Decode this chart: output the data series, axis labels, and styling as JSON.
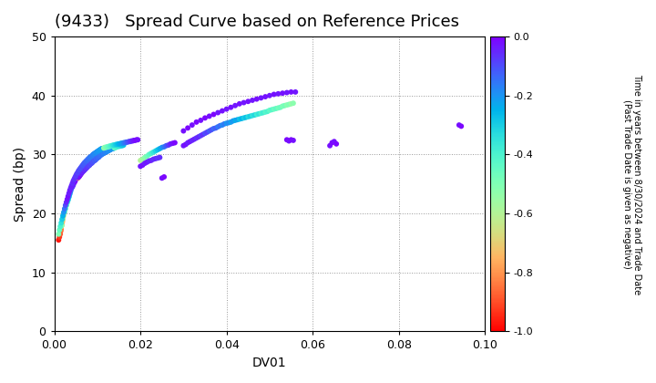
{
  "title": "(9433)   Spread Curve based on Reference Prices",
  "xlabel": "DV01",
  "ylabel": "Spread (bp)",
  "xlim": [
    0.0,
    0.1
  ],
  "ylim": [
    0,
    50
  ],
  "xticks": [
    0.0,
    0.02,
    0.04,
    0.06,
    0.08,
    0.1
  ],
  "yticks": [
    0,
    10,
    20,
    30,
    40,
    50
  ],
  "colorbar_label_line1": "Time in years between 8/30/2024 and Trade Date",
  "colorbar_label_line2": "(Past Trade Date is given as negative)",
  "cbar_min": -1.0,
  "cbar_max": 0.0,
  "cbar_ticks": [
    0.0,
    -0.2,
    -0.4,
    -0.6,
    -0.8,
    -1.0
  ],
  "points": [
    [
      0.001,
      15.5,
      -0.97
    ],
    [
      0.0012,
      16.0,
      -0.93
    ],
    [
      0.0014,
      16.5,
      -0.89
    ],
    [
      0.0015,
      17.0,
      -0.87
    ],
    [
      0.0016,
      17.3,
      -0.84
    ],
    [
      0.0016,
      17.8,
      -0.6
    ],
    [
      0.0017,
      18.0,
      -0.8
    ],
    [
      0.0018,
      18.3,
      -0.77
    ],
    [
      0.0018,
      18.0,
      -0.55
    ],
    [
      0.0019,
      18.6,
      -0.73
    ],
    [
      0.002,
      19.0,
      -0.7
    ],
    [
      0.002,
      19.2,
      -0.52
    ],
    [
      0.0021,
      19.5,
      -0.67
    ],
    [
      0.0022,
      19.8,
      -0.64
    ],
    [
      0.0022,
      20.0,
      -0.48
    ],
    [
      0.0023,
      20.2,
      -0.61
    ],
    [
      0.0024,
      20.5,
      -0.58
    ],
    [
      0.0024,
      20.3,
      -0.44
    ],
    [
      0.0025,
      20.8,
      -0.55
    ],
    [
      0.0026,
      21.0,
      -0.52
    ],
    [
      0.0026,
      20.8,
      -0.4
    ],
    [
      0.0027,
      21.3,
      -0.49
    ],
    [
      0.0028,
      21.5,
      -0.46
    ],
    [
      0.0028,
      21.4,
      -0.36
    ],
    [
      0.003,
      21.8,
      -0.43
    ],
    [
      0.003,
      22.0,
      -0.32
    ],
    [
      0.0031,
      22.2,
      -0.4
    ],
    [
      0.0032,
      22.5,
      -0.37
    ],
    [
      0.0032,
      22.3,
      -0.28
    ],
    [
      0.0033,
      22.7,
      -0.34
    ],
    [
      0.0034,
      23.0,
      -0.31
    ],
    [
      0.0034,
      22.8,
      -0.24
    ],
    [
      0.0035,
      23.2,
      -0.28
    ],
    [
      0.0036,
      23.5,
      -0.25
    ],
    [
      0.0036,
      23.3,
      -0.2
    ],
    [
      0.0037,
      23.7,
      -0.22
    ],
    [
      0.0038,
      24.0,
      -0.19
    ],
    [
      0.0038,
      23.8,
      -0.16
    ],
    [
      0.0039,
      24.2,
      -0.16
    ],
    [
      0.004,
      24.5,
      -0.13
    ],
    [
      0.004,
      24.3,
      -0.12
    ],
    [
      0.0042,
      24.7,
      -0.1
    ],
    [
      0.0042,
      24.5,
      -0.08
    ],
    [
      0.0044,
      25.0,
      -0.07
    ],
    [
      0.0044,
      24.8,
      -0.06
    ],
    [
      0.0045,
      25.2,
      -0.05
    ],
    [
      0.0046,
      25.4,
      -0.04
    ],
    [
      0.0046,
      25.2,
      -0.03
    ],
    [
      0.0048,
      25.6,
      -0.02
    ],
    [
      0.0048,
      25.4,
      -0.01
    ],
    [
      0.005,
      25.8,
      -0.02
    ],
    [
      0.0052,
      26.0,
      -0.03
    ],
    [
      0.0052,
      25.9,
      -0.01
    ],
    [
      0.0055,
      26.2,
      -0.85
    ],
    [
      0.0055,
      26.0,
      -0.8
    ],
    [
      0.006,
      26.5,
      -0.76
    ],
    [
      0.0062,
      26.7,
      -0.72
    ],
    [
      0.0065,
      27.0,
      -0.68
    ],
    [
      0.0067,
      27.2,
      -0.64
    ],
    [
      0.007,
      27.4,
      -0.6
    ],
    [
      0.0072,
      27.6,
      -0.56
    ],
    [
      0.0075,
      27.9,
      -0.52
    ],
    [
      0.0077,
      28.1,
      -0.48
    ],
    [
      0.008,
      28.3,
      -0.44
    ],
    [
      0.0082,
      28.5,
      -0.4
    ],
    [
      0.0085,
      28.7,
      -0.36
    ],
    [
      0.0087,
      28.9,
      -0.32
    ],
    [
      0.009,
      29.1,
      -0.28
    ],
    [
      0.0092,
      29.3,
      -0.24
    ],
    [
      0.0095,
      29.5,
      -0.2
    ],
    [
      0.0097,
      29.6,
      -0.16
    ],
    [
      0.01,
      29.8,
      -0.12
    ],
    [
      0.0102,
      30.0,
      -0.08
    ],
    [
      0.0105,
      30.1,
      -0.04
    ],
    [
      0.0107,
      30.2,
      -0.02
    ],
    [
      0.0055,
      26.1,
      -0.04
    ],
    [
      0.0057,
      26.2,
      -0.03
    ],
    [
      0.0058,
      26.3,
      -0.02
    ],
    [
      0.006,
      26.5,
      -0.01
    ],
    [
      0.0062,
      26.7,
      -0.05
    ],
    [
      0.0064,
      26.9,
      -0.03
    ],
    [
      0.0066,
      27.1,
      -0.06
    ],
    [
      0.0068,
      27.2,
      -0.04
    ],
    [
      0.007,
      27.4,
      -0.07
    ],
    [
      0.0072,
      27.5,
      -0.05
    ],
    [
      0.0074,
      27.7,
      -0.08
    ],
    [
      0.0076,
      27.8,
      -0.06
    ],
    [
      0.0078,
      28.0,
      -0.09
    ],
    [
      0.008,
      28.1,
      -0.07
    ],
    [
      0.0082,
      28.2,
      -0.1
    ],
    [
      0.0084,
      28.4,
      -0.08
    ],
    [
      0.0086,
      28.5,
      -0.11
    ],
    [
      0.0088,
      28.6,
      -0.09
    ],
    [
      0.009,
      28.8,
      -0.12
    ],
    [
      0.0092,
      28.9,
      -0.1
    ],
    [
      0.0094,
      29.0,
      -0.13
    ],
    [
      0.0096,
      29.1,
      -0.11
    ],
    [
      0.0098,
      29.3,
      -0.14
    ],
    [
      0.01,
      29.4,
      -0.12
    ],
    [
      0.0102,
      29.5,
      -0.15
    ],
    [
      0.0104,
      29.6,
      -0.13
    ],
    [
      0.0106,
      29.8,
      -0.16
    ],
    [
      0.0108,
      29.9,
      -0.14
    ],
    [
      0.011,
      30.0,
      -0.17
    ],
    [
      0.0112,
      30.1,
      -0.15
    ],
    [
      0.0115,
      30.2,
      -0.18
    ],
    [
      0.0117,
      30.3,
      -0.16
    ],
    [
      0.012,
      30.4,
      -0.19
    ],
    [
      0.0122,
      30.5,
      -0.17
    ],
    [
      0.0125,
      30.6,
      -0.2
    ],
    [
      0.0127,
      30.7,
      -0.18
    ],
    [
      0.013,
      30.8,
      -0.21
    ],
    [
      0.0132,
      30.9,
      -0.19
    ],
    [
      0.0135,
      31.0,
      -0.22
    ],
    [
      0.0137,
      31.0,
      -0.2
    ],
    [
      0.014,
      31.1,
      -0.45
    ],
    [
      0.0143,
      31.2,
      -0.42
    ],
    [
      0.0146,
      31.3,
      -0.4
    ],
    [
      0.0149,
      31.4,
      -0.38
    ],
    [
      0.0152,
      31.4,
      -0.35
    ],
    [
      0.0155,
      31.5,
      -0.32
    ],
    [
      0.0158,
      31.5,
      -0.3
    ],
    [
      0.0161,
      31.6,
      -0.27
    ],
    [
      0.001,
      16.5,
      -0.5
    ],
    [
      0.0012,
      17.2,
      -0.45
    ],
    [
      0.0014,
      17.8,
      -0.4
    ],
    [
      0.0016,
      18.4,
      -0.35
    ],
    [
      0.0018,
      19.0,
      -0.3
    ],
    [
      0.002,
      19.6,
      -0.25
    ],
    [
      0.0022,
      20.2,
      -0.2
    ],
    [
      0.0024,
      20.8,
      -0.15
    ],
    [
      0.0026,
      21.4,
      -0.1
    ],
    [
      0.0028,
      21.9,
      -0.05
    ],
    [
      0.003,
      22.4,
      -0.03
    ],
    [
      0.0032,
      22.9,
      -0.02
    ],
    [
      0.0034,
      23.4,
      -0.04
    ],
    [
      0.0036,
      23.9,
      -0.03
    ],
    [
      0.0038,
      24.3,
      -0.05
    ],
    [
      0.004,
      24.7,
      -0.04
    ],
    [
      0.0042,
      25.1,
      -0.06
    ],
    [
      0.0044,
      25.5,
      -0.05
    ],
    [
      0.0046,
      25.8,
      -0.07
    ],
    [
      0.0048,
      26.1,
      -0.06
    ],
    [
      0.005,
      26.4,
      -0.08
    ],
    [
      0.0052,
      26.7,
      -0.07
    ],
    [
      0.0054,
      26.9,
      -0.09
    ],
    [
      0.0056,
      27.2,
      -0.08
    ],
    [
      0.0058,
      27.4,
      -0.1
    ],
    [
      0.006,
      27.6,
      -0.09
    ],
    [
      0.0062,
      27.8,
      -0.11
    ],
    [
      0.0064,
      28.0,
      -0.1
    ],
    [
      0.0066,
      28.2,
      -0.12
    ],
    [
      0.0068,
      28.4,
      -0.11
    ],
    [
      0.007,
      28.6,
      -0.13
    ],
    [
      0.0072,
      28.7,
      -0.12
    ],
    [
      0.0074,
      28.9,
      -0.14
    ],
    [
      0.0076,
      29.0,
      -0.13
    ],
    [
      0.0078,
      29.2,
      -0.15
    ],
    [
      0.008,
      29.3,
      -0.14
    ],
    [
      0.0082,
      29.5,
      -0.16
    ],
    [
      0.0084,
      29.6,
      -0.15
    ],
    [
      0.0086,
      29.7,
      -0.17
    ],
    [
      0.0088,
      29.8,
      -0.16
    ],
    [
      0.009,
      30.0,
      -0.18
    ],
    [
      0.0092,
      30.1,
      -0.17
    ],
    [
      0.0094,
      30.2,
      -0.19
    ],
    [
      0.0096,
      30.3,
      -0.18
    ],
    [
      0.0098,
      30.4,
      -0.2
    ],
    [
      0.01,
      30.5,
      -0.19
    ],
    [
      0.0102,
      30.6,
      -0.21
    ],
    [
      0.0104,
      30.7,
      -0.2
    ],
    [
      0.0106,
      30.8,
      -0.22
    ],
    [
      0.0108,
      30.9,
      -0.21
    ],
    [
      0.011,
      31.0,
      -0.23
    ],
    [
      0.0112,
      31.0,
      -0.22
    ],
    [
      0.0115,
      31.1,
      -0.55
    ],
    [
      0.0117,
      31.2,
      -0.52
    ],
    [
      0.012,
      31.2,
      -0.5
    ],
    [
      0.0122,
      31.3,
      -0.48
    ],
    [
      0.0125,
      31.3,
      -0.46
    ],
    [
      0.0127,
      31.4,
      -0.44
    ],
    [
      0.013,
      31.4,
      -0.42
    ],
    [
      0.0132,
      31.5,
      -0.4
    ],
    [
      0.0135,
      31.5,
      -0.38
    ],
    [
      0.0137,
      31.6,
      -0.35
    ],
    [
      0.014,
      31.6,
      -0.33
    ],
    [
      0.0143,
      31.7,
      -0.3
    ],
    [
      0.0146,
      31.7,
      -0.28
    ],
    [
      0.0149,
      31.8,
      -0.26
    ],
    [
      0.0152,
      31.8,
      -0.24
    ],
    [
      0.0155,
      31.9,
      -0.22
    ],
    [
      0.0158,
      31.9,
      -0.2
    ],
    [
      0.0161,
      32.0,
      -0.18
    ],
    [
      0.0164,
      32.0,
      -0.16
    ],
    [
      0.0167,
      32.1,
      -0.14
    ],
    [
      0.017,
      32.1,
      -0.12
    ],
    [
      0.0173,
      32.2,
      -0.1
    ],
    [
      0.0176,
      32.2,
      -0.08
    ],
    [
      0.0179,
      32.3,
      -0.06
    ],
    [
      0.0182,
      32.3,
      -0.04
    ],
    [
      0.0185,
      32.4,
      -0.03
    ],
    [
      0.0188,
      32.4,
      -0.02
    ],
    [
      0.0191,
      32.5,
      -0.01
    ],
    [
      0.0194,
      32.5,
      -0.02
    ],
    [
      0.02,
      29.0,
      -0.6
    ],
    [
      0.0205,
      29.2,
      -0.56
    ],
    [
      0.021,
      29.5,
      -0.52
    ],
    [
      0.0215,
      29.7,
      -0.48
    ],
    [
      0.022,
      30.0,
      -0.44
    ],
    [
      0.0225,
      30.2,
      -0.4
    ],
    [
      0.023,
      30.4,
      -0.36
    ],
    [
      0.0235,
      30.6,
      -0.32
    ],
    [
      0.024,
      30.8,
      -0.28
    ],
    [
      0.0245,
      31.0,
      -0.24
    ],
    [
      0.025,
      31.2,
      -0.2
    ],
    [
      0.0255,
      31.3,
      -0.16
    ],
    [
      0.026,
      31.5,
      -0.12
    ],
    [
      0.0265,
      31.6,
      -0.08
    ],
    [
      0.027,
      31.8,
      -0.04
    ],
    [
      0.0275,
      31.9,
      -0.02
    ],
    [
      0.028,
      32.0,
      -0.01
    ],
    [
      0.02,
      28.0,
      -0.03
    ],
    [
      0.0205,
      28.2,
      -0.02
    ],
    [
      0.021,
      28.5,
      -0.04
    ],
    [
      0.0215,
      28.7,
      -0.03
    ],
    [
      0.022,
      28.9,
      -0.05
    ],
    [
      0.0225,
      29.0,
      -0.04
    ],
    [
      0.023,
      29.2,
      -0.06
    ],
    [
      0.0235,
      29.3,
      -0.05
    ],
    [
      0.024,
      29.4,
      -0.07
    ],
    [
      0.0245,
      29.5,
      -0.06
    ],
    [
      0.025,
      26.0,
      -0.02
    ],
    [
      0.0255,
      26.2,
      -0.01
    ],
    [
      0.03,
      31.5,
      -0.03
    ],
    [
      0.0305,
      31.7,
      -0.02
    ],
    [
      0.031,
      32.0,
      -0.04
    ],
    [
      0.0315,
      32.2,
      -0.03
    ],
    [
      0.032,
      32.4,
      -0.05
    ],
    [
      0.0325,
      32.6,
      -0.04
    ],
    [
      0.033,
      32.8,
      -0.06
    ],
    [
      0.0335,
      33.0,
      -0.05
    ],
    [
      0.034,
      33.2,
      -0.08
    ],
    [
      0.0345,
      33.4,
      -0.06
    ],
    [
      0.035,
      33.6,
      -0.1
    ],
    [
      0.0355,
      33.8,
      -0.08
    ],
    [
      0.036,
      34.0,
      -0.12
    ],
    [
      0.0365,
      34.2,
      -0.1
    ],
    [
      0.037,
      34.4,
      -0.14
    ],
    [
      0.0375,
      34.5,
      -0.12
    ],
    [
      0.038,
      34.7,
      -0.16
    ],
    [
      0.0385,
      34.9,
      -0.14
    ],
    [
      0.039,
      35.0,
      -0.18
    ],
    [
      0.0395,
      35.2,
      -0.16
    ],
    [
      0.04,
      35.3,
      -0.2
    ],
    [
      0.0405,
      35.4,
      -0.18
    ],
    [
      0.041,
      35.5,
      -0.22
    ],
    [
      0.0415,
      35.7,
      -0.2
    ],
    [
      0.042,
      35.8,
      -0.24
    ],
    [
      0.0425,
      35.9,
      -0.22
    ],
    [
      0.043,
      36.0,
      -0.28
    ],
    [
      0.0435,
      36.1,
      -0.25
    ],
    [
      0.044,
      36.2,
      -0.3
    ],
    [
      0.0445,
      36.3,
      -0.27
    ],
    [
      0.045,
      36.4,
      -0.33
    ],
    [
      0.0455,
      36.5,
      -0.3
    ],
    [
      0.046,
      36.6,
      -0.35
    ],
    [
      0.0465,
      36.7,
      -0.32
    ],
    [
      0.047,
      36.8,
      -0.38
    ],
    [
      0.0475,
      36.9,
      -0.35
    ],
    [
      0.048,
      37.0,
      -0.4
    ],
    [
      0.0485,
      37.1,
      -0.38
    ],
    [
      0.049,
      37.2,
      -0.42
    ],
    [
      0.0495,
      37.3,
      -0.4
    ],
    [
      0.05,
      37.5,
      -0.44
    ],
    [
      0.0505,
      37.6,
      -0.42
    ],
    [
      0.051,
      37.7,
      -0.46
    ],
    [
      0.0515,
      37.8,
      -0.44
    ],
    [
      0.052,
      37.9,
      -0.48
    ],
    [
      0.0525,
      38.0,
      -0.46
    ],
    [
      0.053,
      38.2,
      -0.5
    ],
    [
      0.0535,
      38.3,
      -0.48
    ],
    [
      0.054,
      38.4,
      -0.52
    ],
    [
      0.0545,
      38.5,
      -0.5
    ],
    [
      0.055,
      38.6,
      -0.54
    ],
    [
      0.0555,
      38.7,
      -0.52
    ],
    [
      0.03,
      34.0,
      -0.02
    ],
    [
      0.031,
      34.5,
      -0.01
    ],
    [
      0.032,
      35.0,
      -0.02
    ],
    [
      0.033,
      35.5,
      -0.01
    ],
    [
      0.034,
      35.8,
      -0.02
    ],
    [
      0.035,
      36.2,
      -0.01
    ],
    [
      0.036,
      36.5,
      -0.02
    ],
    [
      0.037,
      36.8,
      -0.01
    ],
    [
      0.038,
      37.1,
      -0.03
    ],
    [
      0.039,
      37.4,
      -0.02
    ],
    [
      0.04,
      37.7,
      -0.03
    ],
    [
      0.041,
      38.0,
      -0.02
    ],
    [
      0.042,
      38.3,
      -0.03
    ],
    [
      0.043,
      38.6,
      -0.02
    ],
    [
      0.044,
      38.8,
      -0.03
    ],
    [
      0.045,
      39.0,
      -0.02
    ],
    [
      0.046,
      39.2,
      -0.03
    ],
    [
      0.047,
      39.4,
      -0.02
    ],
    [
      0.048,
      39.6,
      -0.03
    ],
    [
      0.049,
      39.8,
      -0.02
    ],
    [
      0.05,
      40.0,
      -0.03
    ],
    [
      0.051,
      40.2,
      -0.02
    ],
    [
      0.052,
      40.3,
      -0.03
    ],
    [
      0.053,
      40.4,
      -0.02
    ],
    [
      0.054,
      40.5,
      -0.03
    ],
    [
      0.055,
      40.6,
      -0.02
    ],
    [
      0.056,
      40.6,
      -0.03
    ],
    [
      0.054,
      32.5,
      -0.01
    ],
    [
      0.0545,
      32.3,
      -0.02
    ],
    [
      0.055,
      32.5,
      -0.01
    ],
    [
      0.0555,
      32.4,
      -0.02
    ],
    [
      0.064,
      31.5,
      -0.02
    ],
    [
      0.0645,
      32.0,
      -0.01
    ],
    [
      0.065,
      32.2,
      -0.02
    ],
    [
      0.0655,
      31.8,
      -0.01
    ],
    [
      0.094,
      35.0,
      -0.02
    ],
    [
      0.0945,
      34.8,
      -0.01
    ]
  ],
  "marker_size": 18,
  "colormap": "rainbow_r",
  "bg_color": "#ffffff",
  "grid_color": "#999999",
  "title_fontsize": 13,
  "label_fontsize": 10
}
